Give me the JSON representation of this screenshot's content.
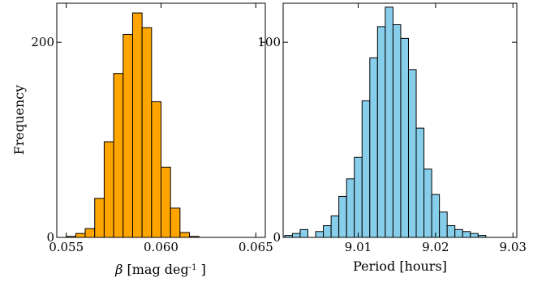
{
  "chart_data": [
    {
      "type": "bar",
      "xlim": [
        0.0545,
        0.0655
      ],
      "ylim": [
        0,
        240
      ],
      "bin_edges": [
        0.055,
        0.0555,
        0.056,
        0.0565,
        0.057,
        0.0575,
        0.058,
        0.0585,
        0.059,
        0.0595,
        0.06,
        0.0605,
        0.061,
        0.0615,
        0.062,
        0.0625,
        0.063,
        0.0635,
        0.064,
        0.0645
      ],
      "counts": [
        1,
        4,
        9,
        40,
        98,
        168,
        208,
        230,
        215,
        139,
        72,
        30,
        5,
        1,
        0,
        0,
        0,
        0,
        0
      ],
      "color": "#FFA500",
      "xticks": [
        0.055,
        0.06,
        0.065
      ],
      "xtick_labels": [
        "0.055",
        "0.060",
        "0.065"
      ],
      "yticks": [
        0,
        200
      ],
      "ytick_labels": [
        "0",
        "200"
      ],
      "xlabel_symbol": "β",
      "xlabel_text": " [mag deg",
      "xlabel_sup": "-1",
      "xlabel_end": " ]",
      "ylabel": "Frequency"
    },
    {
      "type": "bar",
      "xlim": [
        9.0003,
        9.0305
      ],
      "ylim": [
        0,
        120
      ],
      "bin_edges": [
        9.0005,
        9.0015,
        9.0025,
        9.0035,
        9.0045,
        9.0055,
        9.0065,
        9.0075,
        9.0085,
        9.0095,
        9.0105,
        9.0115,
        9.0125,
        9.0135,
        9.0145,
        9.0155,
        9.0165,
        9.0175,
        9.0185,
        9.0195,
        9.0205,
        9.0215,
        9.0225,
        9.0235,
        9.0245,
        9.0255,
        9.0265,
        9.0275,
        9.0285,
        9.0295
      ],
      "counts": [
        1,
        2,
        4,
        0,
        3,
        6,
        11,
        21,
        30,
        41,
        70,
        92,
        108,
        118,
        109,
        102,
        86,
        56,
        35,
        22,
        13,
        6,
        4,
        3,
        2,
        1,
        0,
        0,
        0
      ],
      "color": "#87CEEB",
      "xticks": [
        9.01,
        9.02,
        9.03
      ],
      "xtick_labels": [
        "9.01",
        "9.02",
        "9.03"
      ],
      "yticks": [
        0,
        100
      ],
      "ytick_labels": [
        "0",
        "100"
      ],
      "xlabel": "Period [hours]"
    }
  ]
}
